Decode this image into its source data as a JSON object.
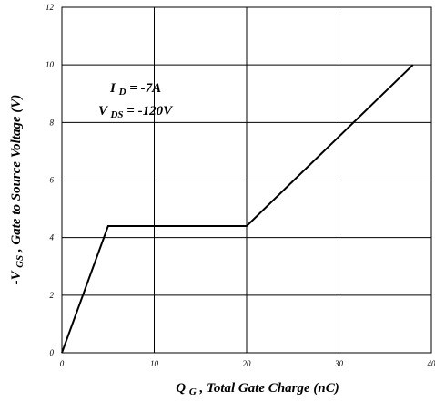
{
  "chart_data": {
    "type": "line",
    "x_ticks": [
      "0",
      "10",
      "20",
      "30",
      "40"
    ],
    "y_ticks": [
      "0",
      "2",
      "4",
      "6",
      "8",
      "10",
      "12"
    ],
    "xlim": [
      0,
      40
    ],
    "ylim": [
      0,
      12
    ],
    "grid": true,
    "xlabel": {
      "main": "Q",
      "sub": "G",
      "rest": " , Total Gate Charge (nC)"
    },
    "ylabel": {
      "main": "-V",
      "sub": "GS",
      "rest": ", Gate to Source Voltage (V)"
    },
    "annotations": [
      {
        "main": "I",
        "sub": "D",
        "rest": " = -7A"
      },
      {
        "main": "V",
        "sub": "DS",
        "rest": " = -120V"
      }
    ],
    "series": [
      {
        "x": [
          0,
          5,
          20,
          38
        ],
        "y": [
          0,
          4.4,
          4.4,
          10
        ]
      }
    ],
    "colors": {
      "line": "#000000",
      "grid": "#000000",
      "background": "#ffffff"
    }
  }
}
